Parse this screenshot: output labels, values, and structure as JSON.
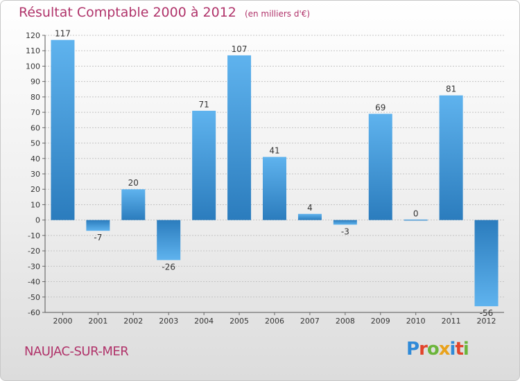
{
  "title": "Résultat Comptable 2000 à 2012",
  "unit": "(en milliers d'€)",
  "commune": "NAUJAC-SUR-MER",
  "logo": {
    "letters": [
      "P",
      "r",
      "o",
      "x",
      "i",
      "t",
      "i"
    ],
    "colors": [
      "#2f8ad8",
      "#e2442b",
      "#6bb53a",
      "#e9a21b",
      "#2f8ad8",
      "#e2442b",
      "#6bb53a"
    ]
  },
  "colors": {
    "title": "#b0336a",
    "bar_top": "#5fb3ee",
    "bar_bottom": "#2b7cbd"
  },
  "chart_data": {
    "type": "bar",
    "title": "Résultat Comptable 2000 à 2012",
    "ylabel": "(en milliers d'€)",
    "categories": [
      "2000",
      "2001",
      "2002",
      "2003",
      "2004",
      "2005",
      "2006",
      "2007",
      "2008",
      "2009",
      "2010",
      "2011",
      "2012"
    ],
    "values": [
      117,
      -7,
      20,
      -26,
      71,
      107,
      41,
      4,
      -3,
      69,
      0,
      81,
      -56
    ],
    "ylim": [
      -60,
      120
    ],
    "yticks": [
      120,
      110,
      100,
      90,
      80,
      70,
      60,
      50,
      40,
      30,
      20,
      10,
      0,
      -10,
      -20,
      -30,
      -40,
      -50,
      -60
    ],
    "grid": true
  }
}
